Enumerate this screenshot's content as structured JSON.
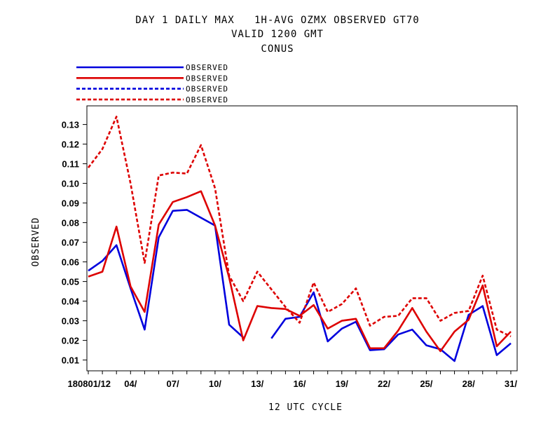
{
  "chart_data": {
    "type": "line",
    "title_lines": [
      "DAY 1 DAILY MAX   1H-AVG OZMX OBSERVED GT70",
      "VALID 1200 GMT",
      "CONUS"
    ],
    "xlabel": "12 UTC CYCLE",
    "ylabel": "OBSERVED",
    "x_tick_labels": [
      {
        "x": 1,
        "label": "180801/12"
      },
      {
        "x": 4,
        "label": "04/"
      },
      {
        "x": 7,
        "label": "07/"
      },
      {
        "x": 10,
        "label": "10/"
      },
      {
        "x": 13,
        "label": "13/"
      },
      {
        "x": 16,
        "label": "16/"
      },
      {
        "x": 19,
        "label": "19/"
      },
      {
        "x": 22,
        "label": "22/"
      },
      {
        "x": 25,
        "label": "25/"
      },
      {
        "x": 28,
        "label": "28/"
      },
      {
        "x": 31,
        "label": "31/"
      }
    ],
    "xlim": [
      0.9,
      31.45
    ],
    "ylim": [
      0.0045,
      0.1395
    ],
    "yticks": [
      0.01,
      0.02,
      0.03,
      0.04,
      0.05,
      0.06,
      0.07,
      0.08,
      0.09,
      0.1,
      0.11,
      0.12,
      0.13
    ],
    "ytick_labels": [
      "0.01",
      "0.02",
      "0.03",
      "0.04",
      "0.05",
      "0.06",
      "0.07",
      "0.08",
      "0.09",
      "0.10",
      "0.11",
      "0.12",
      "0.13"
    ],
    "legend": "top-left",
    "grid": false,
    "series": [
      {
        "name": "OBSERVED",
        "color": "#0000dd",
        "dash": "solid",
        "x": [
          1,
          2,
          3,
          4,
          5,
          6,
          7,
          8,
          9,
          10,
          11,
          12,
          13,
          14,
          15,
          16,
          17,
          18,
          19,
          20,
          21,
          22,
          23,
          24,
          25,
          26,
          27,
          28,
          29,
          30,
          31
        ],
        "y": [
          0.0555,
          0.0605,
          0.0685,
          0.0465,
          0.0255,
          0.0725,
          0.086,
          0.0865,
          0.0825,
          0.0785,
          0.028,
          0.0215,
          null,
          0.021,
          0.031,
          0.032,
          0.0445,
          0.0195,
          0.026,
          0.0295,
          0.015,
          0.0155,
          0.023,
          0.0255,
          0.0175,
          0.0155,
          0.0095,
          0.033,
          0.0375,
          0.0125,
          0.0185
        ]
      },
      {
        "name": "OBSERVED",
        "color": "#dd0000",
        "dash": "solid",
        "x": [
          1,
          2,
          3,
          4,
          5,
          6,
          7,
          8,
          9,
          10,
          11,
          12,
          13,
          14,
          15,
          16,
          17,
          18,
          19,
          20,
          21,
          22,
          23,
          24,
          25,
          26,
          27,
          28,
          29,
          30,
          31
        ],
        "y": [
          0.0525,
          0.055,
          0.078,
          0.0475,
          0.0345,
          0.079,
          0.0905,
          0.093,
          0.096,
          0.0785,
          0.052,
          0.02,
          0.0375,
          0.0365,
          0.036,
          0.0325,
          0.038,
          0.026,
          0.03,
          0.031,
          0.016,
          0.016,
          0.025,
          0.0365,
          0.0245,
          0.0145,
          0.0245,
          0.0305,
          0.048,
          0.017,
          0.0245
        ]
      },
      {
        "name": "OBSERVED",
        "color": "#0000dd",
        "dash": "dashed",
        "x": [],
        "y": []
      },
      {
        "name": "OBSERVED",
        "color": "#dd0000",
        "dash": "dashed",
        "x": [
          1,
          2,
          3,
          4,
          5,
          6,
          7,
          8,
          9,
          10,
          11,
          12,
          13,
          14,
          15,
          16,
          17,
          18,
          19,
          20,
          21,
          22,
          23,
          24,
          25,
          26,
          27,
          28,
          29,
          30,
          31
        ],
        "y": [
          0.108,
          0.1175,
          0.134,
          0.1,
          0.0595,
          0.104,
          0.1055,
          0.105,
          0.1195,
          0.0975,
          0.053,
          0.04,
          0.055,
          0.046,
          0.037,
          0.029,
          0.0495,
          0.0345,
          0.0385,
          0.0465,
          0.0275,
          0.032,
          0.0325,
          0.0415,
          0.0415,
          0.03,
          0.034,
          0.035,
          0.053,
          0.0255,
          0.022
        ]
      }
    ]
  }
}
